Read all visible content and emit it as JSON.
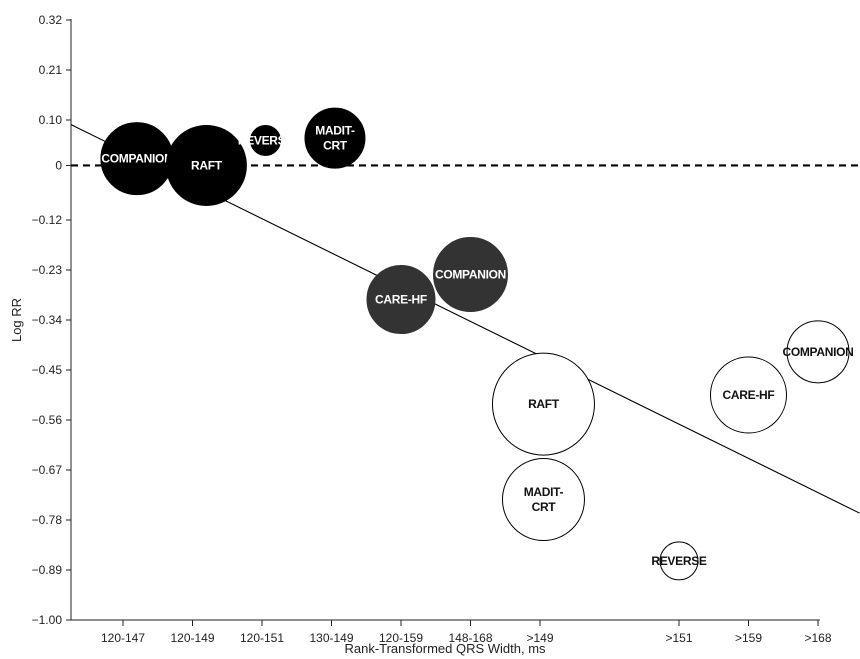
{
  "chart_data": {
    "type": "scatter",
    "subtype": "bubble",
    "title": "",
    "xlabel": "Rank-Transformed QRS Width, ms",
    "ylabel": "Log RR",
    "ylim": [
      -1.0,
      0.32
    ],
    "y_ticks": [
      0.32,
      0.21,
      0.1,
      0,
      -0.12,
      -0.23,
      -0.34,
      -0.45,
      -0.56,
      -0.67,
      -0.78,
      -0.89,
      -1.0
    ],
    "y_tick_labels": [
      "0.32",
      "0.21",
      "0.10",
      "0",
      "−0.12",
      "−0.23",
      "−0.34",
      "−0.45",
      "−0.56",
      "−0.67",
      "−0.78",
      "−0.89",
      "−1.00"
    ],
    "x_ticks": [
      {
        "label": "120-147",
        "rank": 1
      },
      {
        "label": "120-149",
        "rank": 2
      },
      {
        "label": "120-151",
        "rank": 3
      },
      {
        "label": "130-149",
        "rank": 4
      },
      {
        "label": "120-159",
        "rank": 5
      },
      {
        "label": "148-168",
        "rank": 6
      },
      {
        "label": ">149",
        "rank": 7
      },
      {
        "label": ">151",
        "rank": 9
      },
      {
        "label": ">159",
        "rank": 10
      },
      {
        "label": ">168",
        "rank": 11
      }
    ],
    "xlim": [
      0.25,
      11.6
    ],
    "reference_line": {
      "y": 0,
      "style": "dashed"
    },
    "regression_line": {
      "x": [
        0.25,
        11.6
      ],
      "y": [
        0.09,
        -0.765
      ]
    },
    "grid": false,
    "legend": "none",
    "colors": {
      "dark": "#000000",
      "medium": "#333333",
      "open_fill": "#ffffff",
      "open_stroke": "#000000"
    },
    "points": [
      {
        "label": "COMPANION",
        "rank": 1.2,
        "y": 0.015,
        "r": 36,
        "fill": "dark"
      },
      {
        "label": "RAFT",
        "rank": 2.2,
        "y": 0.0,
        "r": 40,
        "fill": "dark"
      },
      {
        "label": "REVERSE",
        "rank": 3.05,
        "y": 0.055,
        "r": 15,
        "fill": "dark"
      },
      {
        "label": "MADIT-\nCRT",
        "rank": 4.05,
        "y": 0.06,
        "r": 30,
        "fill": "dark"
      },
      {
        "label": "CARE-HF",
        "rank": 5.0,
        "y": -0.295,
        "r": 34,
        "fill": "medium"
      },
      {
        "label": "COMPANION",
        "rank": 6.0,
        "y": -0.24,
        "r": 37,
        "fill": "medium"
      },
      {
        "label": "RAFT",
        "rank": 7.05,
        "y": -0.525,
        "r": 51,
        "fill": "open"
      },
      {
        "label": "MADIT-\nCRT",
        "rank": 7.05,
        "y": -0.735,
        "r": 41,
        "fill": "open"
      },
      {
        "label": "REVERSE",
        "rank": 9.0,
        "y": -0.87,
        "r": 19,
        "fill": "open"
      },
      {
        "label": "CARE-HF",
        "rank": 10.0,
        "y": -0.505,
        "r": 38,
        "fill": "open"
      },
      {
        "label": "COMPANION",
        "rank": 11.0,
        "y": -0.41,
        "r": 31,
        "fill": "open"
      }
    ]
  }
}
